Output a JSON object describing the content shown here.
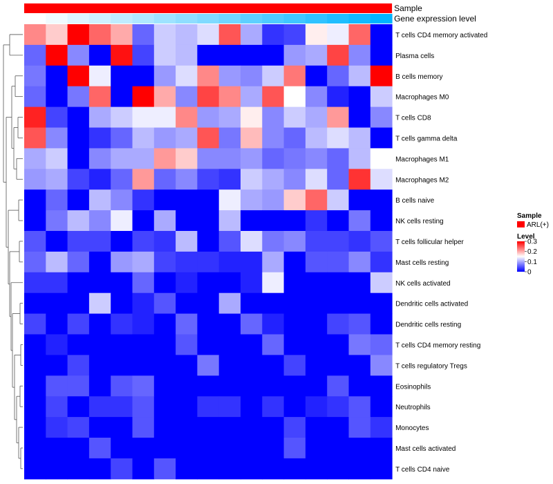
{
  "chart_data": {
    "type": "heatmap",
    "annotation_tracks": [
      {
        "label": "Sample",
        "color": "#ff0000"
      },
      {
        "label": "Gene expression level",
        "gradient": [
          "#ffffff",
          "#00b4ff"
        ]
      }
    ],
    "rows": [
      "T cells CD4 memory activated",
      "Plasma cells",
      "B cells memory",
      "Macrophages M0",
      "T cells CD8",
      "T cells gamma delta",
      "Macrophages M1",
      "Macrophages M2",
      "B cells naive",
      "NK cells resting",
      "T cells follicular helper",
      "Mast cells resting",
      "NK cells activated",
      "Dendritic cells activated",
      "Dendritic cells resting",
      "T cells CD4 memory resting",
      "T cells regulatory  Tregs",
      "Eosinophils",
      "Neutrophils",
      "Monocytes",
      "Mast cells activated",
      "T cells CD4 naive"
    ],
    "n_columns": 17,
    "values": [
      [
        0.22,
        0.18,
        0.3,
        0.24,
        0.2,
        0.06,
        0.12,
        0.11,
        0.13,
        0.25,
        0.1,
        0.03,
        0.04,
        0.16,
        0.14,
        0.24,
        0.0
      ],
      [
        0.06,
        0.3,
        0.08,
        0.0,
        0.29,
        0.04,
        0.12,
        0.11,
        0.0,
        0.0,
        0.0,
        0.0,
        0.09,
        0.1,
        0.26,
        0.08,
        0.0
      ],
      [
        0.07,
        0.0,
        0.3,
        0.14,
        0.0,
        0.0,
        0.09,
        0.13,
        0.22,
        0.09,
        0.08,
        0.12,
        0.23,
        0.0,
        0.06,
        0.11,
        0.3
      ],
      [
        0.06,
        0.0,
        0.07,
        0.24,
        0.0,
        0.3,
        0.2,
        0.08,
        0.26,
        0.22,
        0.1,
        0.25,
        0.15,
        0.08,
        0.02,
        0.0,
        0.12
      ],
      [
        0.28,
        0.04,
        0.0,
        0.1,
        0.12,
        0.14,
        0.14,
        0.22,
        0.09,
        0.1,
        0.16,
        0.08,
        0.12,
        0.1,
        0.21,
        0.0,
        0.08
      ],
      [
        0.25,
        0.08,
        0.0,
        0.03,
        0.06,
        0.11,
        0.09,
        0.1,
        0.25,
        0.07,
        0.19,
        0.08,
        0.06,
        0.11,
        0.13,
        0.11,
        0.0
      ],
      [
        0.1,
        0.12,
        0.0,
        0.08,
        0.1,
        0.1,
        0.21,
        0.18,
        0.08,
        0.08,
        0.09,
        0.06,
        0.07,
        0.08,
        0.06,
        0.11,
        0.15
      ],
      [
        0.09,
        0.1,
        0.04,
        0.02,
        0.06,
        0.21,
        0.06,
        0.08,
        0.04,
        0.03,
        0.12,
        0.1,
        0.08,
        0.13,
        0.06,
        0.27,
        0.13
      ],
      [
        0.0,
        0.06,
        0.0,
        0.11,
        0.08,
        0.03,
        0.0,
        0.0,
        0.0,
        0.14,
        0.1,
        0.09,
        0.18,
        0.24,
        0.12,
        0.0,
        0.0
      ],
      [
        0.0,
        0.07,
        0.11,
        0.08,
        0.14,
        0.0,
        0.1,
        0.0,
        0.0,
        0.11,
        0.0,
        0.0,
        0.0,
        0.03,
        0.0,
        0.07,
        0.0
      ],
      [
        0.05,
        0.0,
        0.04,
        0.04,
        0.0,
        0.04,
        0.03,
        0.11,
        0.0,
        0.05,
        0.13,
        0.07,
        0.08,
        0.04,
        0.04,
        0.03,
        0.05
      ],
      [
        0.06,
        0.11,
        0.06,
        0.0,
        0.09,
        0.1,
        0.04,
        0.03,
        0.03,
        0.02,
        0.02,
        0.1,
        0.0,
        0.05,
        0.05,
        0.08,
        0.03
      ],
      [
        0.03,
        0.03,
        0.0,
        0.0,
        0.0,
        0.06,
        0.0,
        0.02,
        0.0,
        0.0,
        0.02,
        0.14,
        0.0,
        0.0,
        0.0,
        0.0,
        0.12
      ],
      [
        0.0,
        0.0,
        0.0,
        0.12,
        0.0,
        0.02,
        0.05,
        0.0,
        0.0,
        0.1,
        0.0,
        0.0,
        0.0,
        0.0,
        0.0,
        0.0,
        0.0
      ],
      [
        0.04,
        0.0,
        0.04,
        0.0,
        0.03,
        0.02,
        0.0,
        0.06,
        0.0,
        0.0,
        0.06,
        0.02,
        0.0,
        0.0,
        0.04,
        0.05,
        0.0
      ],
      [
        0.0,
        0.02,
        0.0,
        0.0,
        0.0,
        0.0,
        0.0,
        0.05,
        0.0,
        0.0,
        0.0,
        0.06,
        0.0,
        0.0,
        0.0,
        0.07,
        0.06
      ],
      [
        0.0,
        0.0,
        0.04,
        0.0,
        0.0,
        0.0,
        0.0,
        0.0,
        0.07,
        0.0,
        0.0,
        0.0,
        0.04,
        0.0,
        0.0,
        0.0,
        0.08
      ],
      [
        0.0,
        0.05,
        0.05,
        0.0,
        0.05,
        0.06,
        0.0,
        0.0,
        0.0,
        0.0,
        0.0,
        0.0,
        0.0,
        0.0,
        0.05,
        0.0,
        0.0
      ],
      [
        0.0,
        0.04,
        0.0,
        0.03,
        0.03,
        0.05,
        0.0,
        0.0,
        0.03,
        0.03,
        0.0,
        0.03,
        0.0,
        0.02,
        0.03,
        0.05,
        0.0
      ],
      [
        0.0,
        0.03,
        0.04,
        0.0,
        0.0,
        0.05,
        0.0,
        0.0,
        0.0,
        0.0,
        0.0,
        0.0,
        0.04,
        0.0,
        0.0,
        0.05,
        0.03
      ],
      [
        0.0,
        0.0,
        0.0,
        0.05,
        0.0,
        0.0,
        0.0,
        0.0,
        0.0,
        0.0,
        0.0,
        0.0,
        0.05,
        0.0,
        0.0,
        0.0,
        0.0
      ],
      [
        0.0,
        0.0,
        0.0,
        0.0,
        0.04,
        0.0,
        0.05,
        0.0,
        0.0,
        0.0,
        0.0,
        0.0,
        0.0,
        0.0,
        0.0,
        0.0,
        0.0
      ]
    ],
    "gene_expression_levels": [
      0.0,
      0.06,
      0.13,
      0.19,
      0.25,
      0.31,
      0.38,
      0.44,
      0.5,
      0.56,
      0.63,
      0.69,
      0.75,
      0.81,
      0.88,
      0.94,
      1.0
    ],
    "color_scale": {
      "min": 0,
      "max": 0.3,
      "colors": [
        "#0000ff",
        "#ffffff",
        "#ff0000"
      ]
    },
    "legends": {
      "sample": {
        "title": "Sample",
        "entries": [
          {
            "label": "ARL(+)",
            "color": "#ff0000"
          }
        ]
      },
      "level": {
        "title": "Level",
        "ticks": [
          "0.3",
          "0.2",
          "0.1",
          "0"
        ],
        "tick_values": [
          0.3,
          0.2,
          0.1,
          0
        ]
      }
    },
    "dendrogram": "row-clustered"
  }
}
